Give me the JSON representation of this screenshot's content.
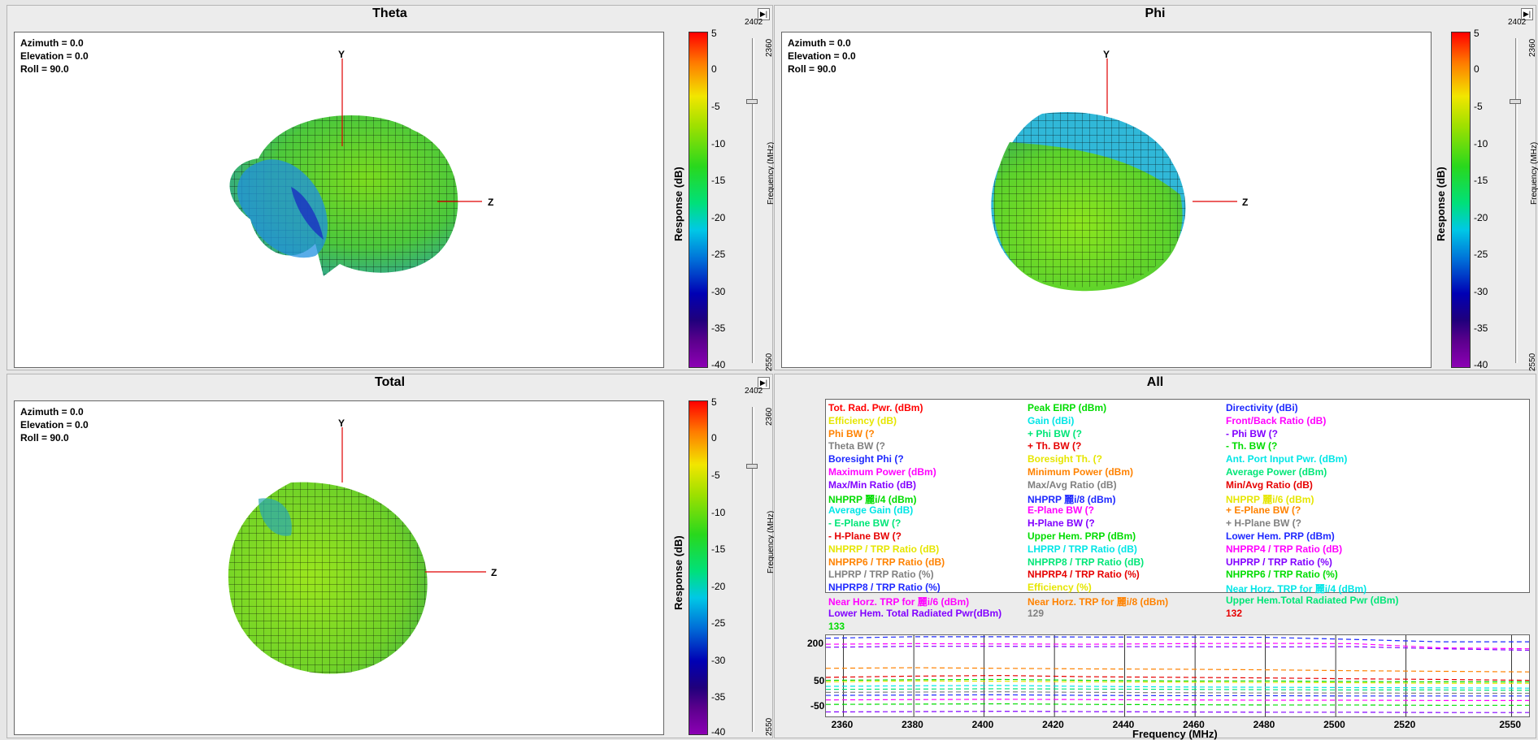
{
  "panels": {
    "theta": {
      "title": "Theta"
    },
    "phi": {
      "title": "Phi"
    },
    "total": {
      "title": "Total"
    },
    "all": {
      "title": "All"
    }
  },
  "view_info": {
    "azimuth": "Azimuth = 0.0",
    "elevation": "Elevation = 0.0",
    "roll": "Roll = 90.0"
  },
  "axes": {
    "y": "Y",
    "z": "Z"
  },
  "colorbar": {
    "label": "Response (dB)",
    "ticks": [
      "5",
      "0",
      "-5",
      "-10",
      "-15",
      "-20",
      "-25",
      "-30",
      "-35",
      "-40"
    ],
    "colors": [
      "#ff0000",
      "#ff7a00",
      "#f2e600",
      "#29d81d",
      "#00c8e6",
      "#0000b4",
      "#8c00b4"
    ]
  },
  "freq_slider": {
    "label": "Frequency (MHz)",
    "top": "2402",
    "tick_2360": "2360",
    "bottom": "2550"
  },
  "legend_items": [
    {
      "text": "Tot. Rad. Pwr. (dBm)",
      "color": "#ff0000"
    },
    {
      "text": "Peak EIRP (dBm)",
      "color": "#00dc00"
    },
    {
      "text": "Directivity (dBi)",
      "color": "#1e28ff"
    },
    {
      "text": "Efficiency (dB)",
      "color": "#e6e600"
    },
    {
      "text": "Gain (dBi)",
      "color": "#00e6e6"
    },
    {
      "text": "Front/Back Ratio (dB)",
      "color": "#ff00ff"
    },
    {
      "text": "Phi BW (?",
      "color": "#ff8200"
    },
    {
      "text": "+ Phi BW (?",
      "color": "#00e678"
    },
    {
      "text": "- Phi BW (?",
      "color": "#8200ff"
    },
    {
      "text": "Theta BW (?",
      "color": "#808080"
    },
    {
      "text": "+ Th. BW (?",
      "color": "#e60000"
    },
    {
      "text": "- Th. BW (?",
      "color": "#00dc00"
    },
    {
      "text": "Boresight Phi (?",
      "color": "#1e28ff"
    },
    {
      "text": "Boresight Th. (?",
      "color": "#e6e600"
    },
    {
      "text": "Ant. Port Input Pwr. (dBm)",
      "color": "#00e6e6"
    },
    {
      "text": "Maximum Power (dBm)",
      "color": "#ff00ff"
    },
    {
      "text": "Minimum Power (dBm)",
      "color": "#ff8200"
    },
    {
      "text": "Average Power (dBm)",
      "color": "#00e678"
    },
    {
      "text": "Max/Min Ratio (dB)",
      "color": "#8200ff"
    },
    {
      "text": "Max/Avg Ratio (dB)",
      "color": "#808080"
    },
    {
      "text": "Min/Avg Ratio (dB)",
      "color": "#e60000"
    },
    {
      "text": "NHPRP 麗i/4 (dBm)",
      "color": "#00dc00"
    },
    {
      "text": "NHPRP 麗i/8 (dBm)",
      "color": "#1e28ff"
    },
    {
      "text": "NHPRP 麗i/6 (dBm)",
      "color": "#e6e600"
    },
    {
      "text": "Average Gain (dB)",
      "color": "#00e6e6"
    },
    {
      "text": "E-Plane BW (?",
      "color": "#ff00ff"
    },
    {
      "text": "+ E-Plane BW (?",
      "color": "#ff8200"
    },
    {
      "text": "- E-Plane BW (?",
      "color": "#00e678"
    },
    {
      "text": "H-Plane BW (?",
      "color": "#8200ff"
    },
    {
      "text": "+ H-Plane BW (?",
      "color": "#808080"
    },
    {
      "text": "- H-Plane BW (?",
      "color": "#e60000"
    },
    {
      "text": "Upper Hem. PRP (dBm)",
      "color": "#00dc00"
    },
    {
      "text": "Lower Hem. PRP (dBm)",
      "color": "#1e28ff"
    },
    {
      "text": "NHPRP / TRP Ratio (dB)",
      "color": "#e6e600"
    },
    {
      "text": "LHPRP / TRP Ratio (dB)",
      "color": "#00e6e6"
    },
    {
      "text": "NHPRP4 / TRP Ratio (dB)",
      "color": "#ff00ff"
    },
    {
      "text": "NHPRP6 / TRP Ratio (dB)",
      "color": "#ff8200"
    },
    {
      "text": "NHPRP8 / TRP Ratio (dB)",
      "color": "#00e678"
    },
    {
      "text": "UHPRP / TRP Ratio (%)",
      "color": "#8200ff"
    },
    {
      "text": "LHPRP / TRP Ratio (%)",
      "color": "#808080"
    },
    {
      "text": "NHPRP4 / TRP Ratio (%)",
      "color": "#e60000"
    },
    {
      "text": "NHPRP6 / TRP Ratio (%)",
      "color": "#00dc00"
    },
    {
      "text": "NHPRP8 / TRP Ratio (%)",
      "color": "#1e28ff"
    },
    {
      "text": "Efficiency (%)",
      "color": "#e6e600"
    },
    {
      "text": "Near Horz. TRP for 麗i/4 (dBm)",
      "color": "#00e6e6"
    },
    {
      "text": "Near Horz. TRP for 麗i/6 (dBm)",
      "color": "#ff00ff"
    },
    {
      "text": "Near Horz. TRP for 麗i/8 (dBm)",
      "color": "#ff8200"
    },
    {
      "text": "Upper Hem.Total Radiated Pwr (dBm)",
      "color": "#00e678"
    },
    {
      "text": "Lower Hem. Total Radiated Pwr(dBm)",
      "color": "#8200ff"
    },
    {
      "text": "129",
      "color": "#808080"
    },
    {
      "text": "132",
      "color": "#e60000"
    },
    {
      "text": "133",
      "color": "#00dc00"
    }
  ],
  "chart_data": {
    "type": "line",
    "xlabel": "Frequency (MHz)",
    "xlim": [
      2355,
      2555
    ],
    "ylim": [
      -60,
      210
    ],
    "x_ticks": [
      "2360",
      "2380",
      "2400",
      "2420",
      "2440",
      "2460",
      "2480",
      "2500",
      "2520",
      "2550"
    ],
    "y_ticks": [
      "200",
      "50",
      "-50"
    ],
    "x": [
      2355,
      2380,
      2405,
      2430,
      2455,
      2480,
      2505,
      2530,
      2555
    ],
    "series": [
      {
        "color": "#1e28ff",
        "values": [
          200,
          205,
          205,
          204,
          204,
          203,
          196,
          188,
          188
        ]
      },
      {
        "color": "#ff00ff",
        "values": [
          180,
          182,
          181,
          180,
          182,
          183,
          182,
          168,
          165
        ]
      },
      {
        "color": "#8200ff",
        "values": [
          170,
          173,
          173,
          172,
          172,
          171,
          172,
          165,
          160
        ]
      },
      {
        "color": "#ff8200",
        "values": [
          100,
          102,
          100,
          98,
          97,
          95,
          92,
          90,
          88
        ]
      },
      {
        "color": "#e60000",
        "values": [
          70,
          74,
          76,
          72,
          70,
          68,
          65,
          63,
          60
        ]
      },
      {
        "color": "#00dc00",
        "values": [
          60,
          62,
          63,
          60,
          58,
          58,
          56,
          55,
          55
        ]
      },
      {
        "color": "#e6e600",
        "values": [
          55,
          58,
          57,
          55,
          54,
          53,
          52,
          50,
          50
        ]
      },
      {
        "color": "#00e6e6",
        "values": [
          40,
          42,
          43,
          40,
          38,
          37,
          36,
          35,
          34
        ]
      },
      {
        "color": "#00e678",
        "values": [
          30,
          31,
          32,
          31,
          30,
          29,
          28,
          28,
          27
        ]
      },
      {
        "color": "#808080",
        "values": [
          20,
          21,
          22,
          20,
          19,
          18,
          18,
          17,
          17
        ]
      },
      {
        "color": "#1e28ff",
        "values": [
          10,
          11,
          12,
          10,
          9,
          9,
          8,
          8,
          8
        ]
      },
      {
        "color": "#ff00ff",
        "values": [
          -5,
          -4,
          -3,
          -4,
          -5,
          -6,
          -6,
          -7,
          -7
        ]
      },
      {
        "color": "#00dc00",
        "values": [
          -20,
          -19,
          -18,
          -20,
          -21,
          -22,
          -22,
          -23,
          -23
        ]
      },
      {
        "color": "#8200ff",
        "values": [
          -45,
          -44,
          -43,
          -44,
          -45,
          -46,
          -46,
          -47,
          -47
        ]
      }
    ]
  }
}
